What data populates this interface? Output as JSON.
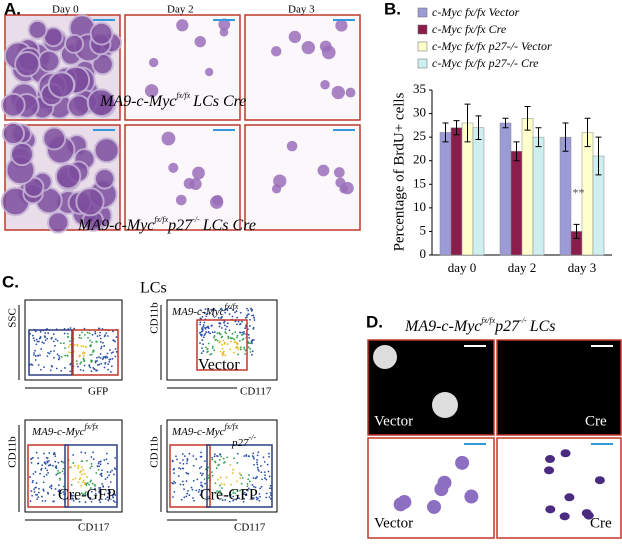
{
  "panel_a": {
    "label": "A.",
    "days": [
      "Day 0",
      "Day 2",
      "Day 3"
    ],
    "caption_1": [
      "MA9-c-Myc",
      "fx/fx",
      "LCs  Cre"
    ],
    "caption_2": [
      "MA9-c-Myc",
      "fx/fx",
      "p27",
      "-/-",
      "LCs  Cre"
    ]
  },
  "chart_data": {
    "type": "bar",
    "label": "B.",
    "ylabel": "Percentage of BrdU+ cells",
    "categories": [
      "day 0",
      "day 2",
      "day 3"
    ],
    "series": [
      {
        "name": "c-Myc fx/fx Vector",
        "color": "#9b9bd6",
        "values": [
          26,
          28,
          25
        ],
        "errors": [
          2,
          1,
          3
        ]
      },
      {
        "name": "c-Myc fx/fx Cre",
        "color": "#8b1d4d",
        "values": [
          27,
          22,
          5
        ],
        "errors": [
          1.5,
          2,
          1.5
        ]
      },
      {
        "name": "c-Myc fx/fx p27-/- Vector",
        "color": "#ffffcc",
        "values": [
          28,
          29,
          26
        ],
        "errors": [
          4,
          2.5,
          3
        ]
      },
      {
        "name": "c-Myc fx/fx p27-/- Cre",
        "color": "#cdeff0",
        "values": [
          27,
          25,
          21
        ],
        "errors": [
          2.5,
          2,
          4
        ]
      }
    ],
    "annotation": "**",
    "ylim": [
      0,
      35
    ],
    "yticks": [
      0,
      5,
      10,
      15,
      20,
      25,
      30,
      35
    ]
  },
  "panel_c": {
    "label": "C.",
    "title": "LCs",
    "plot_1": {
      "y": "SSC",
      "x": "GFP"
    },
    "plot_2": {
      "y": "CD11b",
      "x": "CD117",
      "genotype": [
        "MA9-c-Myc",
        "fx/fx"
      ],
      "condition": "Vector"
    },
    "plot_3": {
      "y": "CD11b",
      "x": "CD117",
      "genotype": [
        "MA9-c-Myc",
        "fx/fx"
      ],
      "condition": "Cre-GFP"
    },
    "plot_4": {
      "y": "CD11b",
      "x": "CD117",
      "genotype": [
        "MA9-c-Myc",
        "fx/fx",
        "p27",
        "-/-"
      ],
      "condition": "Cre-GFP"
    }
  },
  "panel_d": {
    "label": "D.",
    "title": [
      "MA9-c-Myc",
      "fx/fx",
      "p27",
      "-/-",
      "LCs"
    ],
    "images": [
      "Vector",
      "Cre",
      "Vector",
      "Cre"
    ]
  }
}
